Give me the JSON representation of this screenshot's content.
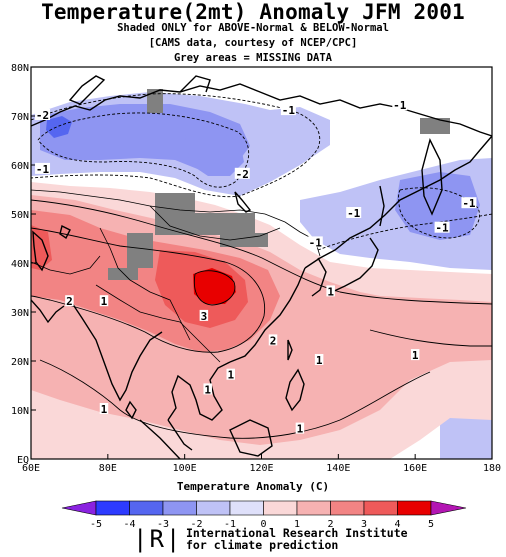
{
  "header": {
    "title": "Temperature(2mt) Anomaly JFM 2001",
    "line1": "Shaded ONLY for ABOVE-Normal & BELOW-Normal",
    "line2": "[CAMS data, courtesy of NCEP/CPC]",
    "line3": "Grey areas = MISSING DATA"
  },
  "map": {
    "lat_labels": [
      "EQ",
      "10N",
      "20N",
      "30N",
      "40N",
      "50N",
      "60N",
      "70N",
      "80N"
    ],
    "lon_labels": [
      "60E",
      "80E",
      "100E",
      "120E",
      "140E",
      "160E",
      "180"
    ],
    "lat_range": [
      0,
      80
    ],
    "lon_range": [
      60,
      180
    ],
    "contour_labels": [
      {
        "text": "-2",
        "lon": 63,
        "lat": 70
      },
      {
        "text": "-1",
        "lon": 127,
        "lat": 71
      },
      {
        "text": "-1",
        "lon": 63,
        "lat": 59
      },
      {
        "text": "-2",
        "lon": 115,
        "lat": 58
      },
      {
        "text": "-1",
        "lon": 174,
        "lat": 52
      },
      {
        "text": "-1",
        "lon": 156,
        "lat": 72
      },
      {
        "text": "-1",
        "lon": 144,
        "lat": 50
      },
      {
        "text": "-1",
        "lon": 167,
        "lat": 47
      },
      {
        "text": "-1",
        "lon": 134,
        "lat": 44
      },
      {
        "text": "2",
        "lon": 70,
        "lat": 32
      },
      {
        "text": "1",
        "lon": 79,
        "lat": 32
      },
      {
        "text": "3",
        "lon": 105,
        "lat": 29
      },
      {
        "text": "1",
        "lon": 138,
        "lat": 34
      },
      {
        "text": "2",
        "lon": 123,
        "lat": 24
      },
      {
        "text": "1",
        "lon": 135,
        "lat": 20
      },
      {
        "text": "1",
        "lon": 106,
        "lat": 14
      },
      {
        "text": "1",
        "lon": 79,
        "lat": 10
      },
      {
        "text": "1",
        "lon": 130,
        "lat": 6
      },
      {
        "text": "1",
        "lon": 160,
        "lat": 21
      },
      {
        "text": "1",
        "lon": 112,
        "lat": 17
      }
    ],
    "missing_color": "#808080"
  },
  "colorbar": {
    "title": "Temperature Anomaly (C)",
    "ticks": [
      "-5",
      "-4",
      "-3",
      "-2",
      "-1",
      "0",
      "1",
      "2",
      "3",
      "4",
      "5"
    ],
    "below_colors": [
      "#8a22e0",
      "#2d3bff",
      "#5566f0",
      "#8e95f2",
      "#bfc2f6",
      "#dfe0fa"
    ],
    "above_colors": [
      "#fad8d8",
      "#f6b2b2",
      "#f28484",
      "#ee5a5a",
      "#e80000",
      "#b80055",
      "#b316b3"
    ]
  },
  "footer": {
    "logo": "|R|",
    "line1": "International Research Institute",
    "line2": "for climate prediction"
  }
}
